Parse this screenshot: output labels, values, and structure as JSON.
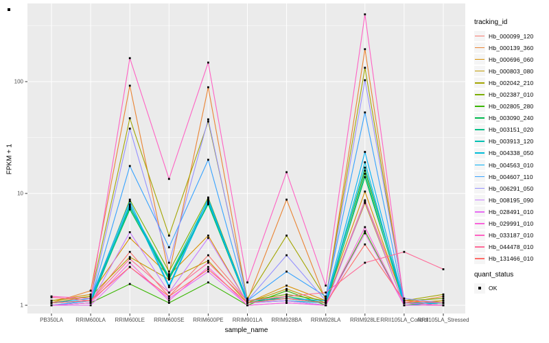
{
  "figure": {
    "background": "#FFFFFF",
    "panel_bg": "#EBEBEB",
    "grid_color": "#FFFFFF",
    "tick_text_color": "#4D4D4D",
    "axis_tick_color": "#333333",
    "point_color": "#000000"
  },
  "axes": {
    "x_title": "sample_name",
    "y_title": "FPKM + 1",
    "y_tick_labels": [
      "1",
      "10",
      "100"
    ]
  },
  "legend": {
    "tracking_title": "tracking_id",
    "quant_title": "quant_status",
    "quant_ok_label": "OK"
  },
  "chart_data": {
    "type": "line",
    "x_axis_label": "sample_name",
    "y_axis_label": "FPKM + 1",
    "y_scale": "log10",
    "y_tick_values": [
      1,
      10,
      100
    ],
    "y_minor_tick_values": [
      3.162,
      31.62,
      316.2
    ],
    "ylim": [
      0.83,
      490
    ],
    "grid": "on",
    "legend_position": "right",
    "point_shape": "filled-black-square (quant_status = OK at every point)",
    "categories": [
      "PB350LA",
      "RRIM600LA",
      "RRIM600LE",
      "RRIM600SE",
      "RRIM600PE",
      "RRIM901LA",
      "RRIM928BA",
      "RRIM928LA",
      "RRIM928LE",
      "RRII105LA_Control",
      "RRII105LA_Stressed"
    ],
    "series": [
      {
        "name": "Hb_000099_120",
        "color": "#F8766D",
        "values": [
          1.05,
          1.1,
          3.0,
          1.2,
          2.8,
          1.1,
          1.15,
          1.05,
          8.7,
          1.1,
          1.05
        ]
      },
      {
        "name": "Hb_000139_360",
        "color": "#EA8331",
        "values": [
          1.05,
          1.35,
          92,
          1.9,
          89,
          1.1,
          8.8,
          1.1,
          195,
          1.05,
          1.2
        ]
      },
      {
        "name": "Hb_000696_060",
        "color": "#D89000",
        "values": [
          1.1,
          1.25,
          4.0,
          1.85,
          4.2,
          1.05,
          1.5,
          1.1,
          10.4,
          1.05,
          1.1
        ]
      },
      {
        "name": "Hb_000803_080",
        "color": "#C09B00",
        "values": [
          1.05,
          1.2,
          2.7,
          1.7,
          2.5,
          1.05,
          1.4,
          1.05,
          8.2,
          1.0,
          1.1
        ]
      },
      {
        "name": "Hb_002042_210",
        "color": "#A3A500",
        "values": [
          1.1,
          1.2,
          47,
          4.2,
          44,
          1.15,
          4.2,
          1.15,
          133,
          1.1,
          1.25
        ]
      },
      {
        "name": "Hb_002387_010",
        "color": "#7CAE00",
        "values": [
          1.05,
          1.1,
          8.8,
          2.0,
          9.2,
          1.1,
          1.25,
          1.1,
          16,
          1.1,
          1.15
        ]
      },
      {
        "name": "Hb_002805_280",
        "color": "#39B600",
        "values": [
          1.0,
          1.05,
          1.55,
          1.05,
          1.6,
          1.0,
          1.35,
          1.0,
          4.6,
          1.0,
          1.05
        ]
      },
      {
        "name": "Hb_003090_240",
        "color": "#00BB4E",
        "values": [
          1.05,
          1.1,
          7.2,
          1.7,
          8.0,
          1.05,
          1.2,
          1.05,
          14,
          1.05,
          1.0
        ]
      },
      {
        "name": "Hb_003151_020",
        "color": "#00C087",
        "values": [
          1.0,
          1.05,
          7.5,
          1.75,
          8.2,
          1.05,
          1.1,
          1.0,
          15,
          1.0,
          1.0
        ]
      },
      {
        "name": "Hb_003913_120",
        "color": "#00C0B2",
        "values": [
          1.05,
          1.1,
          7.8,
          1.8,
          8.8,
          1.1,
          1.15,
          1.05,
          17,
          1.05,
          1.0
        ]
      },
      {
        "name": "Hb_004338_050",
        "color": "#00BCD8",
        "values": [
          1.0,
          1.1,
          8.0,
          1.45,
          8.5,
          1.05,
          1.1,
          1.05,
          19,
          1.0,
          1.05
        ]
      },
      {
        "name": "Hb_004563_010",
        "color": "#00B0F6",
        "values": [
          1.05,
          1.15,
          8.5,
          1.5,
          9.0,
          1.05,
          1.15,
          1.1,
          23.5,
          1.05,
          1.0
        ]
      },
      {
        "name": "Hb_004607_110",
        "color": "#35A2FF",
        "values": [
          1.0,
          1.1,
          17.6,
          3.3,
          20,
          1.1,
          2.0,
          1.2,
          53,
          1.05,
          1.05
        ]
      },
      {
        "name": "Hb_006291_050",
        "color": "#9590FF",
        "values": [
          1.05,
          1.1,
          38,
          2.4,
          46,
          1.1,
          2.8,
          1.1,
          103,
          1.15,
          1.05
        ]
      },
      {
        "name": "Hb_008195_090",
        "color": "#C77CFF",
        "values": [
          1.0,
          1.05,
          4.5,
          1.3,
          4.0,
          1.05,
          1.1,
          1.0,
          8.5,
          1.0,
          1.0
        ]
      },
      {
        "name": "Hb_028491_010",
        "color": "#E76BF3",
        "values": [
          1.0,
          1.0,
          2.2,
          1.15,
          2.0,
          1.0,
          1.05,
          1.0,
          4.4,
          1.0,
          1.0
        ]
      },
      {
        "name": "Hb_029991_010",
        "color": "#FA62DB",
        "values": [
          1.0,
          1.05,
          2.4,
          1.1,
          2.2,
          1.0,
          1.05,
          1.0,
          5.0,
          1.0,
          1.0
        ]
      },
      {
        "name": "Hb_033187_010",
        "color": "#FF61C3",
        "values": [
          1.2,
          1.15,
          162,
          13.5,
          148,
          1.6,
          15.5,
          1.5,
          400,
          1.05,
          1.0
        ]
      },
      {
        "name": "Hb_044478_010",
        "color": "#FF6A98",
        "values": [
          1.18,
          1.1,
          2.6,
          1.3,
          2.4,
          1.1,
          1.2,
          1.3,
          2.4,
          3.0,
          2.1
        ]
      },
      {
        "name": "Hb_131466_010",
        "color": "#FF6C67",
        "values": [
          1.05,
          1.1,
          2.2,
          1.2,
          2.1,
          1.05,
          1.15,
          1.05,
          3.5,
          1.1,
          1.05
        ]
      }
    ]
  }
}
